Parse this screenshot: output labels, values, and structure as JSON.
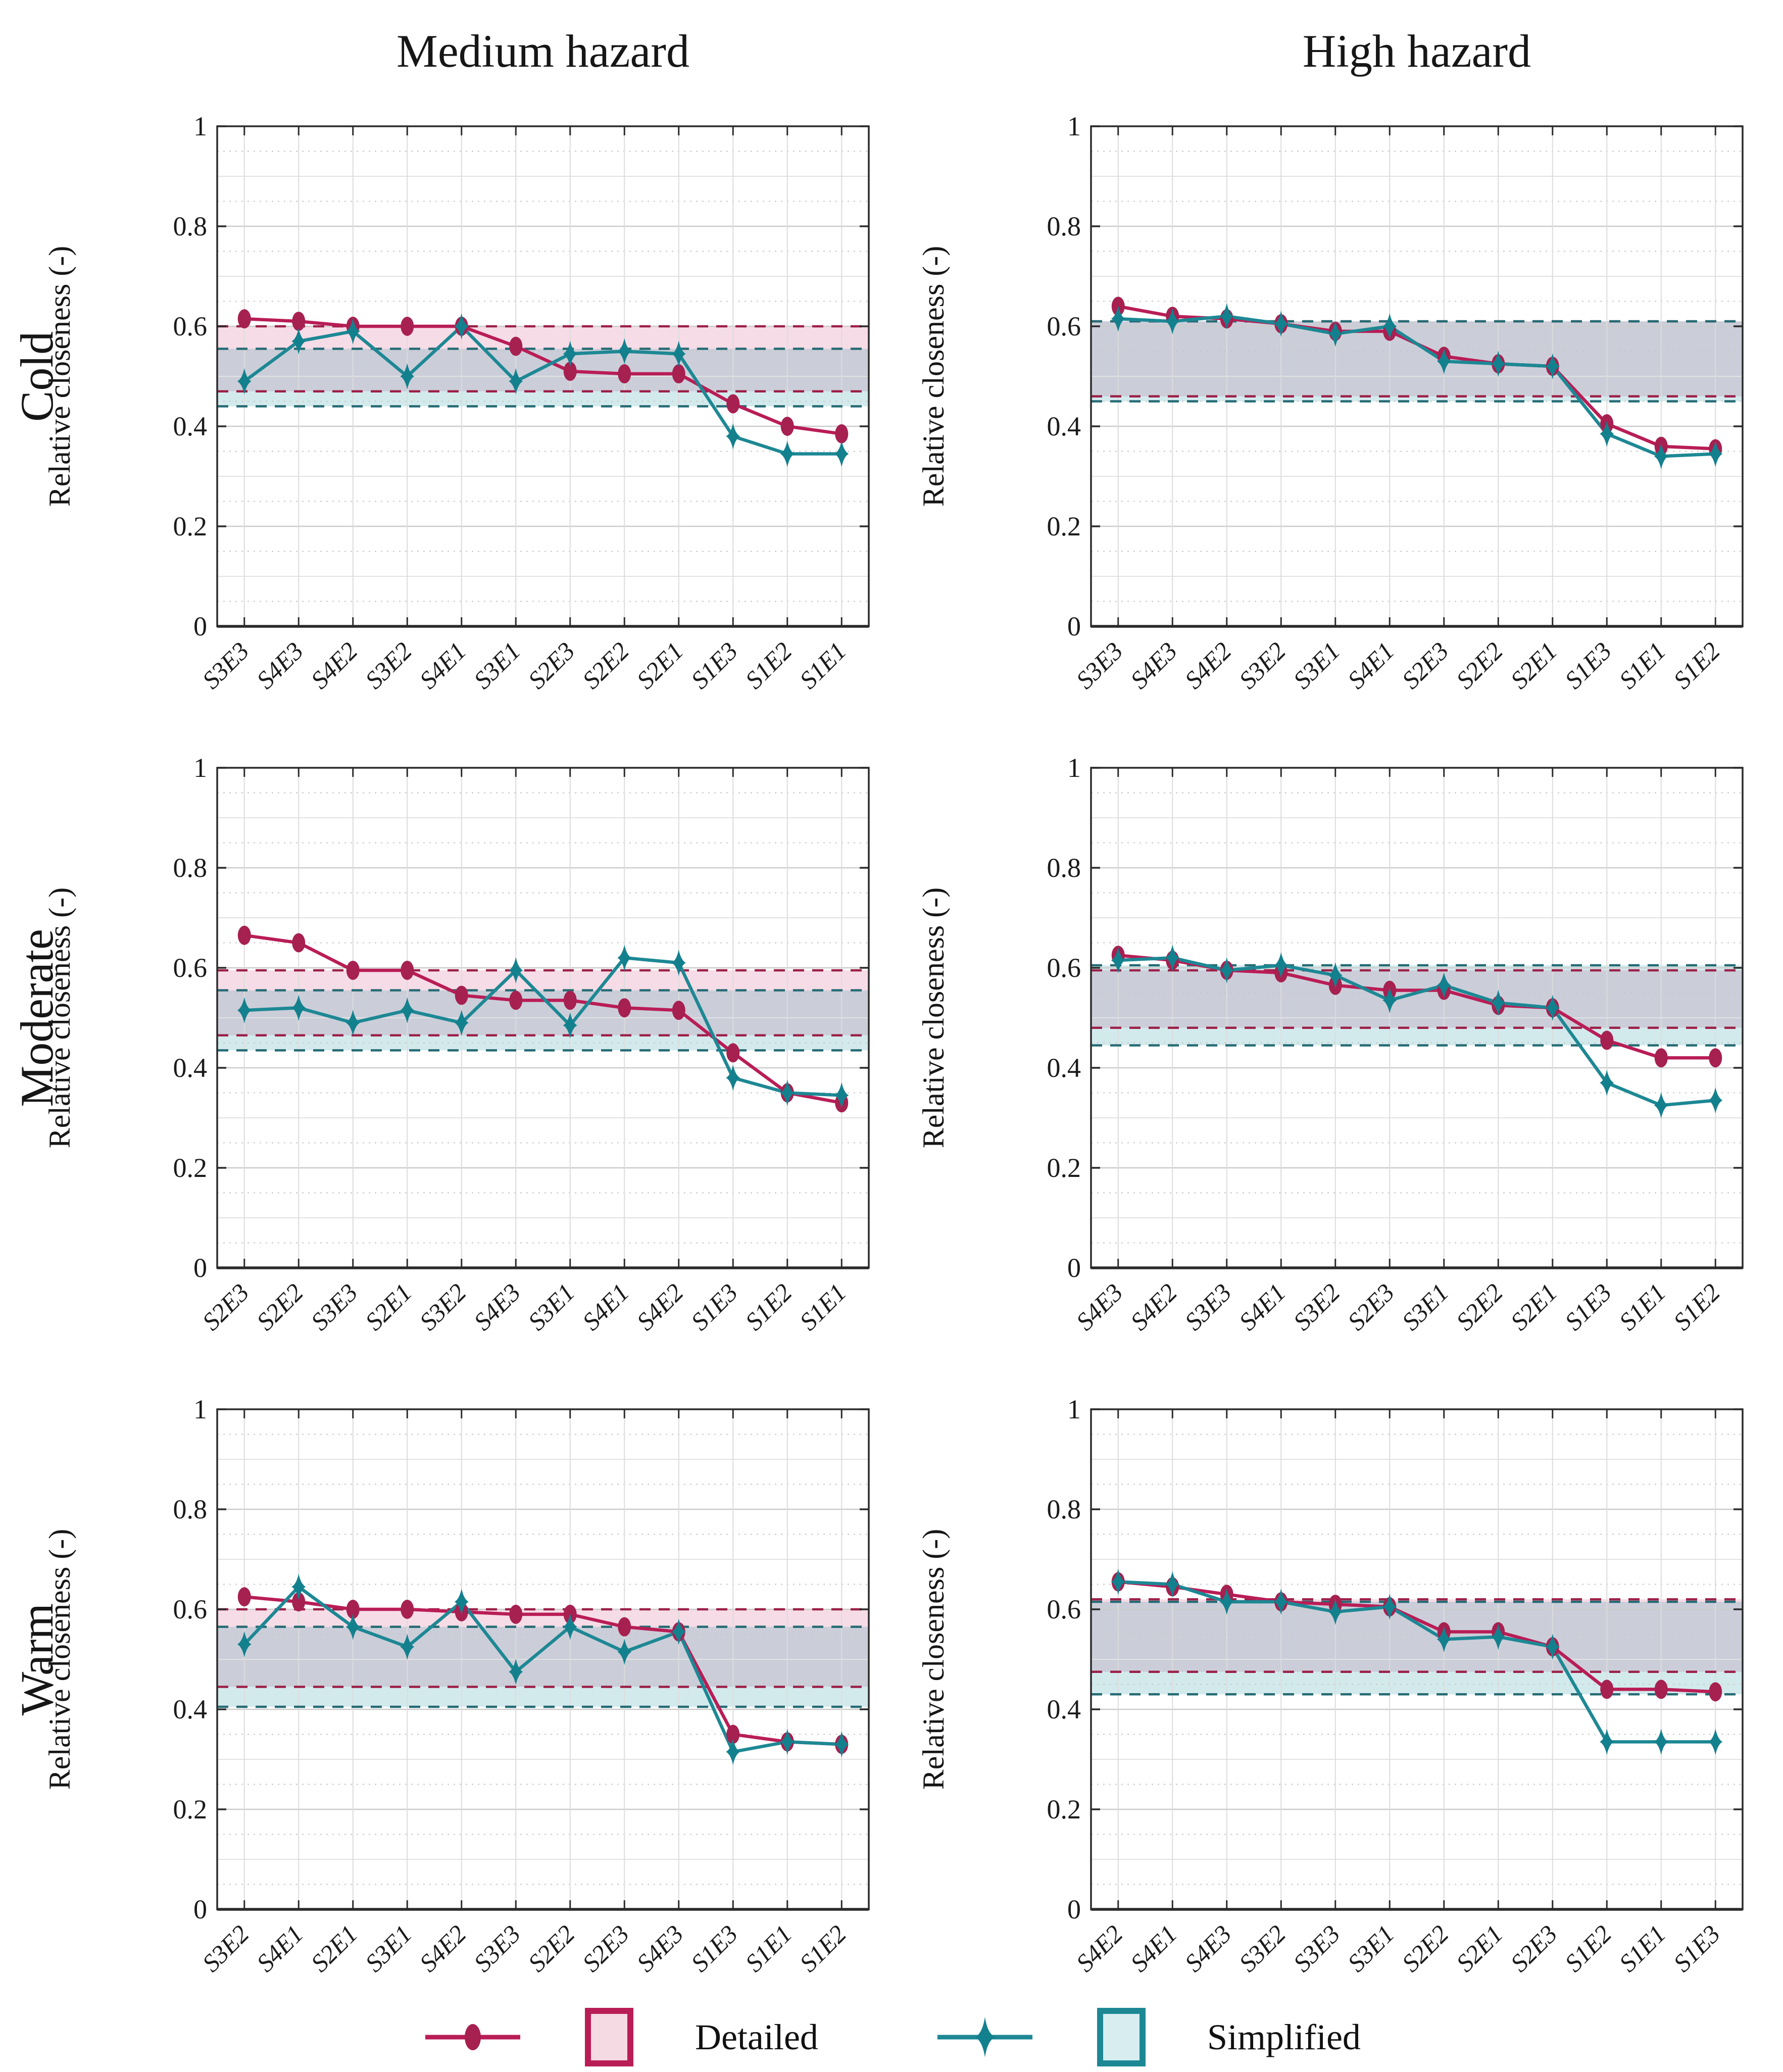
{
  "column_titles": [
    "Medium hazard",
    "High hazard"
  ],
  "row_labels": [
    "Cold",
    "Moderate",
    "Warm"
  ],
  "ylabel": "Relative closeness (-)",
  "yticks": [
    0,
    0.2,
    0.4,
    0.6,
    0.8,
    1
  ],
  "legend": {
    "detailed_label": "Detailed",
    "simplified_label": "Simplified"
  },
  "colors": {
    "detailed": "#B91D56",
    "detailed_marker": "#A62050",
    "simplified": "#1D8894",
    "simplified_marker": "#13808D",
    "detailed_band_fill": "rgba(200,40,100,0.16)",
    "simplified_band_fill": "rgba(35,150,163,0.20)",
    "detailed_band_edge": "#9c2048",
    "simplified_band_edge": "#256b74",
    "detailed_swatch_fill": "#f5d9e3",
    "simplified_swatch_fill": "#d7edf0",
    "grid_major": "#cccccc",
    "grid_mid": "#e2e2e2",
    "grid_minor": "#c6c6c6",
    "axis": "#2a2a2a"
  },
  "chart_data": [
    {
      "type": "line",
      "row": "Cold",
      "hazard": "Medium hazard",
      "title": "",
      "xlabel": "",
      "ylabel": "Relative closeness (-)",
      "ylim": [
        0,
        1
      ],
      "categories": [
        "S3E3",
        "S4E3",
        "S4E2",
        "S3E2",
        "S4E1",
        "S3E1",
        "S2E3",
        "S2E2",
        "S2E1",
        "S1E3",
        "S1E2",
        "S1E1"
      ],
      "series": [
        {
          "name": "Detailed",
          "values": [
            0.615,
            0.61,
            0.6,
            0.6,
            0.6,
            0.56,
            0.51,
            0.505,
            0.505,
            0.445,
            0.4,
            0.385
          ]
        },
        {
          "name": "Simplified",
          "values": [
            0.49,
            0.57,
            0.59,
            0.5,
            0.6,
            0.49,
            0.545,
            0.55,
            0.545,
            0.38,
            0.345,
            0.345
          ]
        }
      ],
      "bands": {
        "detailed": [
          0.47,
          0.6
        ],
        "simplified": [
          0.44,
          0.555
        ]
      }
    },
    {
      "type": "line",
      "row": "Cold",
      "hazard": "High hazard",
      "title": "",
      "xlabel": "",
      "ylabel": "Relative closeness (-)",
      "ylim": [
        0,
        1
      ],
      "categories": [
        "S3E3",
        "S4E3",
        "S4E2",
        "S3E2",
        "S3E1",
        "S4E1",
        "S2E3",
        "S2E2",
        "S2E1",
        "S1E3",
        "S1E1",
        "S1E2"
      ],
      "series": [
        {
          "name": "Detailed",
          "values": [
            0.64,
            0.62,
            0.615,
            0.605,
            0.59,
            0.59,
            0.54,
            0.525,
            0.52,
            0.405,
            0.36,
            0.355
          ]
        },
        {
          "name": "Simplified",
          "values": [
            0.615,
            0.61,
            0.62,
            0.605,
            0.585,
            0.6,
            0.53,
            0.525,
            0.52,
            0.385,
            0.34,
            0.345
          ]
        }
      ],
      "bands": {
        "detailed": [
          0.46,
          0.61
        ],
        "simplified": [
          0.45,
          0.61
        ]
      }
    },
    {
      "type": "line",
      "row": "Moderate",
      "hazard": "Medium hazard",
      "title": "",
      "xlabel": "",
      "ylabel": "Relative closeness (-)",
      "ylim": [
        0,
        1
      ],
      "categories": [
        "S2E3",
        "S2E2",
        "S3E3",
        "S2E1",
        "S3E2",
        "S4E3",
        "S3E1",
        "S4E1",
        "S4E2",
        "S1E3",
        "S1E2",
        "S1E1"
      ],
      "series": [
        {
          "name": "Detailed",
          "values": [
            0.665,
            0.65,
            0.595,
            0.595,
            0.545,
            0.535,
            0.535,
            0.52,
            0.515,
            0.43,
            0.35,
            0.33
          ]
        },
        {
          "name": "Simplified",
          "values": [
            0.515,
            0.52,
            0.49,
            0.515,
            0.49,
            0.595,
            0.485,
            0.62,
            0.61,
            0.38,
            0.35,
            0.345
          ]
        }
      ],
      "bands": {
        "detailed": [
          0.465,
          0.595
        ],
        "simplified": [
          0.435,
          0.555
        ]
      }
    },
    {
      "type": "line",
      "row": "Moderate",
      "hazard": "High hazard",
      "title": "",
      "xlabel": "",
      "ylabel": "Relative closeness (-)",
      "ylim": [
        0,
        1
      ],
      "categories": [
        "S4E3",
        "S4E2",
        "S3E3",
        "S4E1",
        "S3E2",
        "S2E3",
        "S3E1",
        "S2E2",
        "S2E1",
        "S1E3",
        "S1E1",
        "S1E2"
      ],
      "series": [
        {
          "name": "Detailed",
          "values": [
            0.625,
            0.615,
            0.595,
            0.59,
            0.565,
            0.555,
            0.555,
            0.525,
            0.52,
            0.455,
            0.42,
            0.42
          ]
        },
        {
          "name": "Simplified",
          "values": [
            0.615,
            0.62,
            0.595,
            0.605,
            0.585,
            0.535,
            0.565,
            0.53,
            0.52,
            0.37,
            0.325,
            0.335
          ]
        }
      ],
      "bands": {
        "detailed": [
          0.48,
          0.595
        ],
        "simplified": [
          0.445,
          0.605
        ]
      }
    },
    {
      "type": "line",
      "row": "Warm",
      "hazard": "Medium hazard",
      "title": "",
      "xlabel": "",
      "ylabel": "Relative closeness (-)",
      "ylim": [
        0,
        1
      ],
      "categories": [
        "S3E2",
        "S4E1",
        "S2E1",
        "S3E1",
        "S4E2",
        "S3E3",
        "S2E2",
        "S2E3",
        "S4E3",
        "S1E3",
        "S1E1",
        "S1E2"
      ],
      "series": [
        {
          "name": "Detailed",
          "values": [
            0.625,
            0.615,
            0.6,
            0.6,
            0.595,
            0.59,
            0.59,
            0.565,
            0.555,
            0.35,
            0.335,
            0.33
          ]
        },
        {
          "name": "Simplified",
          "values": [
            0.53,
            0.645,
            0.565,
            0.525,
            0.615,
            0.475,
            0.565,
            0.515,
            0.555,
            0.315,
            0.335,
            0.33
          ]
        }
      ],
      "bands": {
        "detailed": [
          0.445,
          0.6
        ],
        "simplified": [
          0.405,
          0.565
        ]
      }
    },
    {
      "type": "line",
      "row": "Warm",
      "hazard": "High hazard",
      "title": "",
      "xlabel": "",
      "ylabel": "Relative closeness (-)",
      "ylim": [
        0,
        1
      ],
      "categories": [
        "S4E2",
        "S4E1",
        "S4E3",
        "S3E2",
        "S3E3",
        "S3E1",
        "S2E2",
        "S2E1",
        "S2E3",
        "S1E2",
        "S1E1",
        "S1E3"
      ],
      "series": [
        {
          "name": "Detailed",
          "values": [
            0.655,
            0.645,
            0.63,
            0.615,
            0.61,
            0.605,
            0.555,
            0.555,
            0.525,
            0.44,
            0.44,
            0.435
          ]
        },
        {
          "name": "Simplified",
          "values": [
            0.655,
            0.65,
            0.615,
            0.615,
            0.595,
            0.605,
            0.54,
            0.545,
            0.525,
            0.335,
            0.335,
            0.335
          ]
        }
      ],
      "bands": {
        "detailed": [
          0.475,
          0.62
        ],
        "simplified": [
          0.43,
          0.615
        ]
      }
    }
  ]
}
